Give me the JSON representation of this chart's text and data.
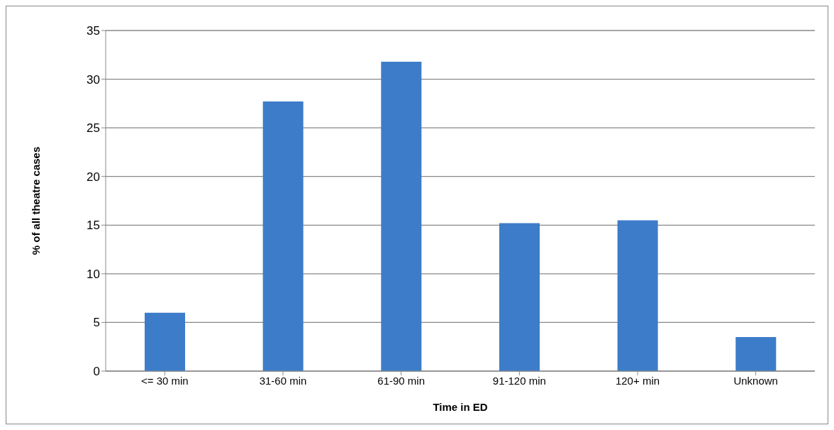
{
  "chart_data": {
    "type": "bar",
    "xlabel": "Time in ED",
    "ylabel": "% of all theatre cases",
    "categories": [
      "<= 30 min",
      "31-60 min",
      "61-90 min",
      "91-120 min",
      "120+ min",
      "Unknown"
    ],
    "values": [
      6.0,
      27.7,
      31.8,
      15.2,
      15.5,
      3.5
    ],
    "color": "#3d7cc9",
    "ylim": [
      0,
      35
    ],
    "yticks": [
      0,
      5,
      10,
      15,
      20,
      25,
      30,
      35
    ],
    "grid": "y"
  }
}
